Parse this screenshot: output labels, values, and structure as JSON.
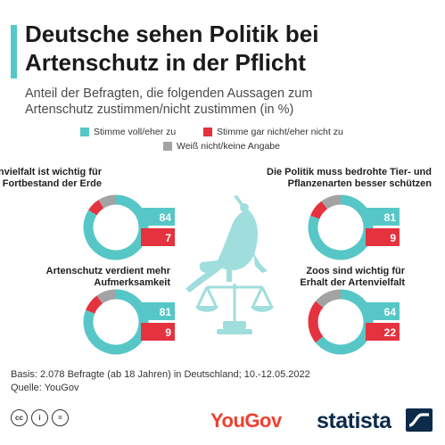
{
  "header": {
    "title_line1": "Deutsche sehen Politik bei",
    "title_line2": "Artenschutz in der Pflicht",
    "subtitle_line1": "Anteil der Befragten, die folgenden Aussagen zum",
    "subtitle_line2": "Artenschutz zustimmen/nicht zustimmen (in %)"
  },
  "legend": {
    "agree": "Stimme voll/eher zu",
    "disagree": "Stimme gar nicht/eher nicht zu",
    "unknown": "Weiß nicht/keine Angabe"
  },
  "colors": {
    "agree": "#56c7c6",
    "disagree": "#e4323f",
    "unknown": "#a3a3a3",
    "accent": "#56c7c6",
    "illustration": "#9fdedc"
  },
  "chart_data": [
    {
      "type": "pie",
      "title_lines": [
        "Artenvielfalt ist wichtig für",
        "den Fortbestand der Erde"
      ],
      "agree": 84,
      "disagree": 7,
      "unknown": 9,
      "labels": [
        "84",
        "7"
      ]
    },
    {
      "type": "pie",
      "title_lines": [
        "Die Politik muss bedrohte Tier- und",
        "Pflanzenarten besser schützen"
      ],
      "agree": 81,
      "disagree": 9,
      "unknown": 10,
      "labels": [
        "81",
        "9"
      ]
    },
    {
      "type": "pie",
      "title_lines": [
        "Artenschutz verdient mehr",
        "Aufmerksamkeit"
      ],
      "agree": 81,
      "disagree": 9,
      "unknown": 10,
      "labels": [
        "81",
        "9"
      ]
    },
    {
      "type": "pie",
      "title_lines": [
        "Zoos sind wichtig für",
        "Erhalt der Artenvielfalt"
      ],
      "agree": 64,
      "disagree": 22,
      "unknown": 14,
      "labels": [
        "64",
        "22"
      ]
    }
  ],
  "footer": {
    "basis": "Basis: 2.078 Befragte (ab 18 Jahren) in Deutschland; 10.-12.05.2022",
    "source": "Quelle: YouGov",
    "yougov_logo": "YouGov",
    "statista_logo": "statista",
    "license_icons": [
      "cc-icon",
      "by-icon",
      "nd-icon"
    ]
  }
}
